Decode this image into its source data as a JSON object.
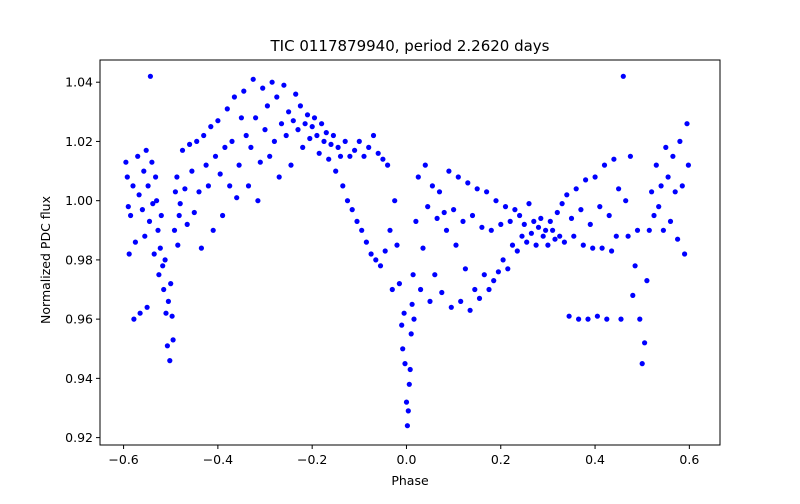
{
  "chart_data": {
    "type": "scatter",
    "title": "TIC 0117879940, period 2.2620 days",
    "xlabel": "Phase",
    "ylabel": "Normalized PDC flux",
    "xlim": [
      -0.65,
      0.665
    ],
    "ylim": [
      0.9175,
      1.0475
    ],
    "xticks": [
      -0.6,
      -0.4,
      -0.2,
      0.0,
      0.2,
      0.4,
      0.6
    ],
    "xtick_labels": [
      "−0.6",
      "−0.4",
      "−0.2",
      "0.0",
      "0.2",
      "0.4",
      "0.6"
    ],
    "yticks": [
      0.92,
      0.94,
      0.96,
      0.98,
      1.0,
      1.02,
      1.04
    ],
    "ytick_labels": [
      "0.92",
      "0.94",
      "0.96",
      "0.98",
      "1.00",
      "1.02",
      "1.04"
    ],
    "grid": false,
    "legend": "none",
    "marker_color": "#0000ff",
    "series": [
      {
        "points": [
          [
            -0.595,
            1.013
          ],
          [
            -0.592,
            1.008
          ],
          [
            -0.59,
            0.998
          ],
          [
            -0.588,
            0.982
          ],
          [
            -0.585,
            0.995
          ],
          [
            -0.58,
            1.005
          ],
          [
            -0.578,
            0.96
          ],
          [
            -0.575,
            0.986
          ],
          [
            -0.57,
            1.015
          ],
          [
            -0.567,
            1.002
          ],
          [
            -0.565,
            0.962
          ],
          [
            -0.56,
            0.997
          ],
          [
            -0.557,
            1.01
          ],
          [
            -0.555,
            0.988
          ],
          [
            -0.552,
            1.017
          ],
          [
            -0.55,
            0.964
          ],
          [
            -0.548,
            1.005
          ],
          [
            -0.545,
            0.993
          ],
          [
            -0.543,
            1.042
          ],
          [
            -0.54,
            1.013
          ],
          [
            -0.538,
            0.999
          ],
          [
            -0.535,
            0.982
          ],
          [
            -0.532,
            1.008
          ],
          [
            -0.53,
            1.0
          ],
          [
            -0.527,
            0.99
          ],
          [
            -0.525,
            0.975
          ],
          [
            -0.522,
            0.984
          ],
          [
            -0.52,
            0.995
          ],
          [
            -0.517,
            0.978
          ],
          [
            -0.515,
            0.97
          ],
          [
            -0.512,
            0.98
          ],
          [
            -0.51,
            0.962
          ],
          [
            -0.507,
            0.951
          ],
          [
            -0.505,
            0.966
          ],
          [
            -0.502,
            0.946
          ],
          [
            -0.5,
            0.972
          ],
          [
            -0.497,
            0.961
          ],
          [
            -0.495,
            0.953
          ],
          [
            -0.492,
            0.99
          ],
          [
            -0.49,
            1.003
          ],
          [
            -0.487,
            1.008
          ],
          [
            -0.485,
            0.985
          ],
          [
            -0.482,
            0.995
          ],
          [
            -0.48,
            0.999
          ],
          [
            -0.475,
            1.017
          ],
          [
            -0.47,
            1.004
          ],
          [
            -0.465,
            0.992
          ],
          [
            -0.46,
            1.019
          ],
          [
            -0.455,
            1.01
          ],
          [
            -0.45,
            0.996
          ],
          [
            -0.445,
            1.02
          ],
          [
            -0.44,
            1.003
          ],
          [
            -0.435,
            0.984
          ],
          [
            -0.43,
            1.022
          ],
          [
            -0.425,
            1.012
          ],
          [
            -0.42,
            1.005
          ],
          [
            -0.415,
            1.025
          ],
          [
            -0.41,
            0.99
          ],
          [
            -0.405,
            1.015
          ],
          [
            -0.4,
            1.027
          ],
          [
            -0.395,
            1.009
          ],
          [
            -0.39,
            0.995
          ],
          [
            -0.385,
            1.018
          ],
          [
            -0.38,
            1.031
          ],
          [
            -0.375,
            1.005
          ],
          [
            -0.37,
            1.02
          ],
          [
            -0.365,
            1.035
          ],
          [
            -0.36,
            1.001
          ],
          [
            -0.355,
            1.012
          ],
          [
            -0.35,
            1.028
          ],
          [
            -0.345,
            1.037
          ],
          [
            -0.34,
            1.022
          ],
          [
            -0.335,
            1.005
          ],
          [
            -0.33,
            1.018
          ],
          [
            -0.325,
            1.041
          ],
          [
            -0.32,
            1.028
          ],
          [
            -0.315,
            1.0
          ],
          [
            -0.31,
            1.013
          ],
          [
            -0.305,
            1.038
          ],
          [
            -0.3,
            1.024
          ],
          [
            -0.295,
            1.032
          ],
          [
            -0.29,
            1.015
          ],
          [
            -0.285,
            1.04
          ],
          [
            -0.28,
            1.02
          ],
          [
            -0.275,
            1.035
          ],
          [
            -0.27,
            1.008
          ],
          [
            -0.265,
            1.026
          ],
          [
            -0.26,
            1.039
          ],
          [
            -0.255,
            1.022
          ],
          [
            -0.25,
            1.03
          ],
          [
            -0.245,
            1.012
          ],
          [
            -0.24,
            1.027
          ],
          [
            -0.235,
            1.036
          ],
          [
            -0.23,
            1.024
          ],
          [
            -0.225,
            1.032
          ],
          [
            -0.22,
            1.018
          ],
          [
            -0.215,
            1.026
          ],
          [
            -0.21,
            1.029
          ],
          [
            -0.205,
            1.021
          ],
          [
            -0.2,
            1.025
          ],
          [
            -0.195,
            1.028
          ],
          [
            -0.19,
            1.022
          ],
          [
            -0.185,
            1.016
          ],
          [
            -0.18,
            1.026
          ],
          [
            -0.175,
            1.02
          ],
          [
            -0.17,
            1.023
          ],
          [
            -0.165,
            1.014
          ],
          [
            -0.16,
            1.019
          ],
          [
            -0.155,
            1.022
          ],
          [
            -0.15,
            1.01
          ],
          [
            -0.145,
            1.018
          ],
          [
            -0.14,
            1.015
          ],
          [
            -0.135,
            1.005
          ],
          [
            -0.13,
            1.02
          ],
          [
            -0.125,
            1.0
          ],
          [
            -0.12,
            1.015
          ],
          [
            -0.115,
            0.997
          ],
          [
            -0.11,
            1.017
          ],
          [
            -0.105,
            0.993
          ],
          [
            -0.1,
            1.02
          ],
          [
            -0.095,
            0.99
          ],
          [
            -0.09,
            1.015
          ],
          [
            -0.085,
            0.986
          ],
          [
            -0.08,
            1.018
          ],
          [
            -0.075,
            0.982
          ],
          [
            -0.07,
            1.022
          ],
          [
            -0.065,
            0.98
          ],
          [
            -0.06,
            1.016
          ],
          [
            -0.055,
            0.978
          ],
          [
            -0.05,
            1.014
          ],
          [
            -0.045,
            0.983
          ],
          [
            -0.04,
            1.012
          ],
          [
            -0.035,
            0.99
          ],
          [
            -0.03,
            0.97
          ],
          [
            -0.025,
            1.0
          ],
          [
            -0.02,
            0.985
          ],
          [
            -0.015,
            0.972
          ],
          [
            -0.01,
            0.958
          ],
          [
            -0.008,
            0.95
          ],
          [
            -0.005,
            0.962
          ],
          [
            -0.003,
            0.945
          ],
          [
            0.0,
            0.932
          ],
          [
            0.002,
            0.924
          ],
          [
            0.004,
            0.929
          ],
          [
            0.006,
            0.938
          ],
          [
            0.008,
            0.943
          ],
          [
            0.01,
            0.955
          ],
          [
            0.012,
            0.965
          ],
          [
            0.014,
            0.975
          ],
          [
            0.016,
            0.96
          ],
          [
            0.02,
            0.993
          ],
          [
            0.025,
            1.008
          ],
          [
            0.03,
            0.97
          ],
          [
            0.035,
            0.984
          ],
          [
            0.04,
            1.012
          ],
          [
            0.045,
            0.998
          ],
          [
            0.05,
            0.966
          ],
          [
            0.055,
            1.005
          ],
          [
            0.06,
            0.975
          ],
          [
            0.065,
            0.994
          ],
          [
            0.07,
            1.003
          ],
          [
            0.075,
            0.969
          ],
          [
            0.08,
            0.996
          ],
          [
            0.085,
            0.99
          ],
          [
            0.09,
            1.01
          ],
          [
            0.095,
            0.964
          ],
          [
            0.1,
            0.997
          ],
          [
            0.105,
            0.985
          ],
          [
            0.11,
            1.008
          ],
          [
            0.115,
            0.966
          ],
          [
            0.12,
            0.993
          ],
          [
            0.125,
            0.977
          ],
          [
            0.13,
            1.006
          ],
          [
            0.135,
            0.963
          ],
          [
            0.14,
            0.995
          ],
          [
            0.145,
            0.97
          ],
          [
            0.15,
            1.004
          ],
          [
            0.155,
            0.967
          ],
          [
            0.16,
            0.991
          ],
          [
            0.165,
            0.975
          ],
          [
            0.17,
            1.003
          ],
          [
            0.175,
            0.97
          ],
          [
            0.18,
            0.99
          ],
          [
            0.185,
            0.973
          ],
          [
            0.19,
            1.0
          ],
          [
            0.195,
            0.976
          ],
          [
            0.2,
            0.992
          ],
          [
            0.205,
            0.98
          ],
          [
            0.21,
            0.998
          ],
          [
            0.215,
            0.977
          ],
          [
            0.22,
            0.993
          ],
          [
            0.225,
            0.985
          ],
          [
            0.23,
            0.997
          ],
          [
            0.235,
            0.983
          ],
          [
            0.24,
            0.995
          ],
          [
            0.245,
            0.988
          ],
          [
            0.25,
            0.992
          ],
          [
            0.255,
            0.986
          ],
          [
            0.26,
            0.999
          ],
          [
            0.265,
            0.989
          ],
          [
            0.27,
            0.993
          ],
          [
            0.275,
            0.985
          ],
          [
            0.28,
            0.991
          ],
          [
            0.285,
            0.994
          ],
          [
            0.29,
            0.988
          ],
          [
            0.295,
            0.99
          ],
          [
            0.3,
            0.985
          ],
          [
            0.305,
            0.993
          ],
          [
            0.31,
            0.99
          ],
          [
            0.315,
            0.987
          ],
          [
            0.32,
            0.996
          ],
          [
            0.325,
            0.988
          ],
          [
            0.33,
            0.999
          ],
          [
            0.335,
            0.986
          ],
          [
            0.34,
            1.002
          ],
          [
            0.345,
            0.961
          ],
          [
            0.35,
            0.994
          ],
          [
            0.355,
            0.988
          ],
          [
            0.36,
            1.004
          ],
          [
            0.365,
            0.96
          ],
          [
            0.37,
            0.997
          ],
          [
            0.375,
            0.985
          ],
          [
            0.38,
            1.007
          ],
          [
            0.385,
            0.96
          ],
          [
            0.39,
            0.992
          ],
          [
            0.395,
            0.984
          ],
          [
            0.4,
            1.008
          ],
          [
            0.405,
            0.961
          ],
          [
            0.41,
            0.998
          ],
          [
            0.415,
            0.984
          ],
          [
            0.42,
            1.012
          ],
          [
            0.425,
            0.96
          ],
          [
            0.43,
            0.995
          ],
          [
            0.435,
            0.983
          ],
          [
            0.44,
            1.014
          ],
          [
            0.445,
            0.988
          ],
          [
            0.45,
            1.004
          ],
          [
            0.455,
            0.96
          ],
          [
            0.46,
            1.042
          ],
          [
            0.465,
            1.0
          ],
          [
            0.47,
            0.988
          ],
          [
            0.475,
            1.015
          ],
          [
            0.48,
            0.968
          ],
          [
            0.485,
            0.978
          ],
          [
            0.49,
            0.99
          ],
          [
            0.495,
            0.96
          ],
          [
            0.5,
            0.945
          ],
          [
            0.505,
            0.952
          ],
          [
            0.51,
            0.973
          ],
          [
            0.515,
            0.99
          ],
          [
            0.52,
            1.003
          ],
          [
            0.525,
            0.995
          ],
          [
            0.53,
            1.012
          ],
          [
            0.535,
            0.998
          ],
          [
            0.54,
            1.005
          ],
          [
            0.545,
            0.99
          ],
          [
            0.55,
            1.018
          ],
          [
            0.555,
            1.008
          ],
          [
            0.56,
            0.993
          ],
          [
            0.565,
            1.015
          ],
          [
            0.57,
            1.003
          ],
          [
            0.575,
            0.987
          ],
          [
            0.58,
            1.02
          ],
          [
            0.585,
            1.005
          ],
          [
            0.59,
            0.982
          ],
          [
            0.595,
            1.026
          ],
          [
            0.598,
            1.012
          ]
        ]
      }
    ]
  }
}
